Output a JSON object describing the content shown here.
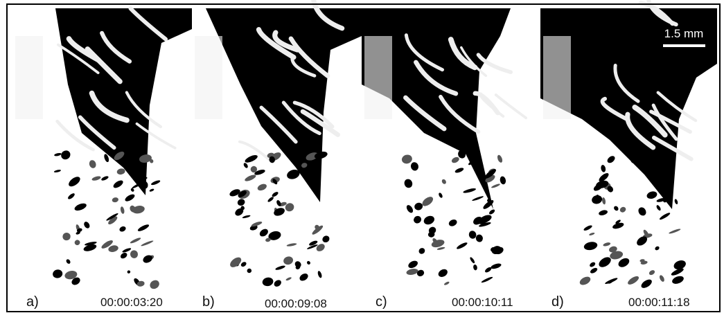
{
  "scale_bar": {
    "label": "1.5 mm"
  },
  "panels": [
    {
      "label": "a)",
      "time": "00:00:03:20"
    },
    {
      "label": "b)",
      "time": "00:00:09:08"
    },
    {
      "label": "c)",
      "time": "00:00:10:11"
    },
    {
      "label": "d)",
      "time": "00:00:11:18"
    }
  ]
}
